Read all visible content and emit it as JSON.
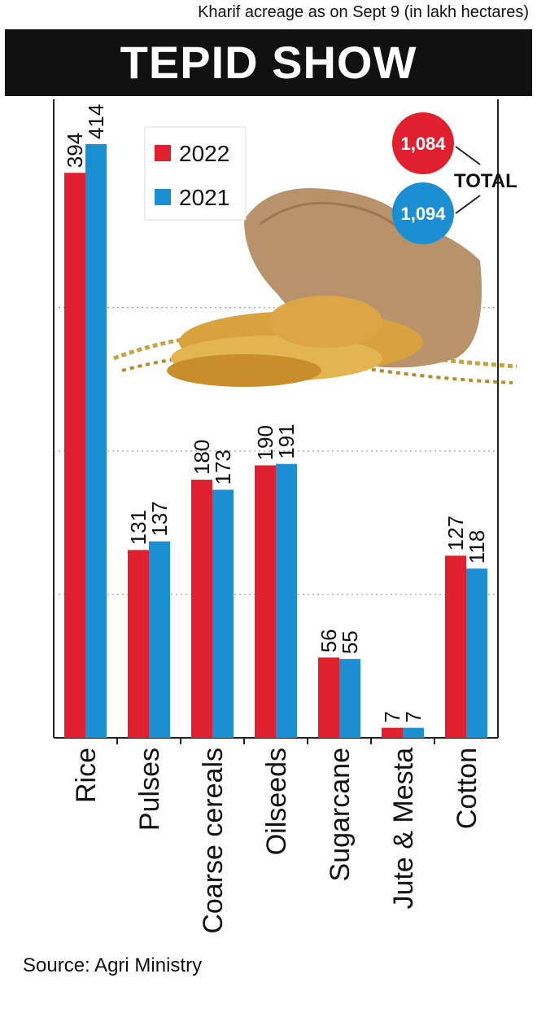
{
  "header": {
    "subtitle": "Kharif acreage as on Sept 9 (in lakh hectares)",
    "title": "TEPID SHOW"
  },
  "source": "Source: Agri Ministry",
  "totals": {
    "label": "TOTAL",
    "items": [
      {
        "series": "2022",
        "value": "1,084",
        "color": "#e0202e"
      },
      {
        "series": "2021",
        "value": "1,094",
        "color": "#1b8fd1"
      }
    ]
  },
  "chart_data": {
    "type": "bar",
    "title": "TEPID SHOW",
    "subtitle": "Kharif acreage as on Sept 9 (in lakh hectares)",
    "categories": [
      "Rice",
      "Pulses",
      "Coarse cereals",
      "Oilseeds",
      "Sugarcane",
      "Jute & Mesta",
      "Cotton"
    ],
    "series": [
      {
        "name": "2022",
        "color": "#e0202e",
        "values": [
          394,
          131,
          180,
          190,
          56,
          7,
          127
        ]
      },
      {
        "name": "2021",
        "color": "#1b8fd1",
        "values": [
          414,
          137,
          173,
          191,
          55,
          7,
          118
        ]
      }
    ],
    "ylim": [
      0,
      450
    ],
    "grid": true,
    "legend": "top-center",
    "xlabel": "",
    "ylabel": ""
  }
}
